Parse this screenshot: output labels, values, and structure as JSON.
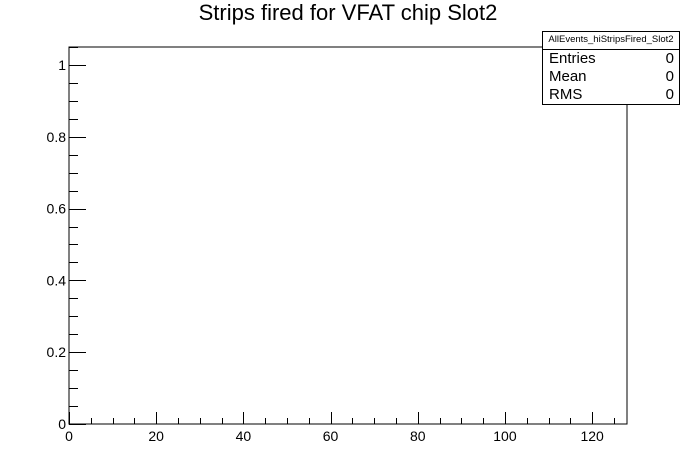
{
  "chart_data": {
    "type": "bar",
    "title": "Strips fired for VFAT chip Slot2",
    "xlabel": "",
    "ylabel": "",
    "xlim": [
      0,
      128
    ],
    "ylim": [
      0,
      1.05
    ],
    "x_major_ticks": [
      0,
      20,
      40,
      60,
      80,
      100,
      120
    ],
    "x_tick_labels": [
      "0",
      "20",
      "40",
      "60",
      "80",
      "100",
      "120"
    ],
    "x_minor_step": 5,
    "y_major_ticks": [
      0,
      0.2,
      0.4,
      0.6,
      0.8,
      1
    ],
    "y_tick_labels": [
      "0",
      "0.2",
      "0.4",
      "0.6",
      "0.8",
      "1"
    ],
    "y_minor_step": 0.05,
    "series": [],
    "grid": false
  },
  "stats_box": {
    "name": "AllEvents_hiStripsFired_Slot2",
    "rows": [
      {
        "label": "Entries",
        "value": "0"
      },
      {
        "label": "Mean",
        "value": "0"
      },
      {
        "label": "RMS",
        "value": "0"
      }
    ]
  }
}
